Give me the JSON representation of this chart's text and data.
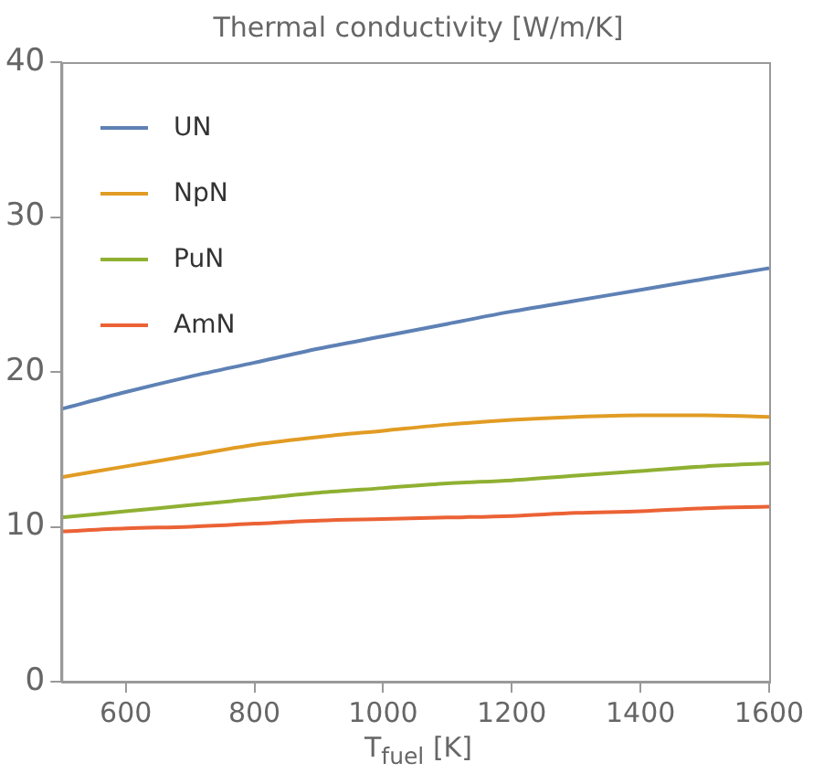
{
  "chart_data": {
    "type": "line",
    "title": "Thermal conductivity [W/m/K]",
    "xlabel": "T$_{fuel}$ [K]",
    "x": [
      500,
      600,
      700,
      800,
      900,
      1000,
      1100,
      1200,
      1300,
      1400,
      1500,
      1600
    ],
    "series": [
      {
        "name": "UN",
        "color": "#5e81b5",
        "values": [
          17.6,
          18.7,
          19.7,
          20.6,
          21.5,
          22.3,
          23.1,
          23.9,
          24.6,
          25.3,
          26.0,
          26.7
        ]
      },
      {
        "name": "NpN",
        "color": "#e19c24",
        "values": [
          13.2,
          13.9,
          14.6,
          15.3,
          15.8,
          16.2,
          16.6,
          16.9,
          17.1,
          17.2,
          17.2,
          17.1
        ]
      },
      {
        "name": "PuN",
        "color": "#8fb032",
        "values": [
          10.6,
          11.0,
          11.4,
          11.8,
          12.2,
          12.5,
          12.8,
          13.0,
          13.3,
          13.6,
          13.9,
          14.1
        ]
      },
      {
        "name": "AmN",
        "color": "#eb6235",
        "values": [
          9.7,
          9.9,
          10.0,
          10.2,
          10.4,
          10.5,
          10.6,
          10.7,
          10.9,
          11.0,
          11.2,
          11.3
        ]
      }
    ],
    "xlim": [
      500,
      1600
    ],
    "xticks": [
      600,
      800,
      1000,
      1200,
      1400,
      1600
    ],
    "ylim": [
      0,
      40
    ],
    "yticks": [
      0,
      10,
      20,
      30,
      40
    ],
    "grid": false,
    "legend": "top left",
    "marker": "none",
    "line_style": "solid"
  }
}
